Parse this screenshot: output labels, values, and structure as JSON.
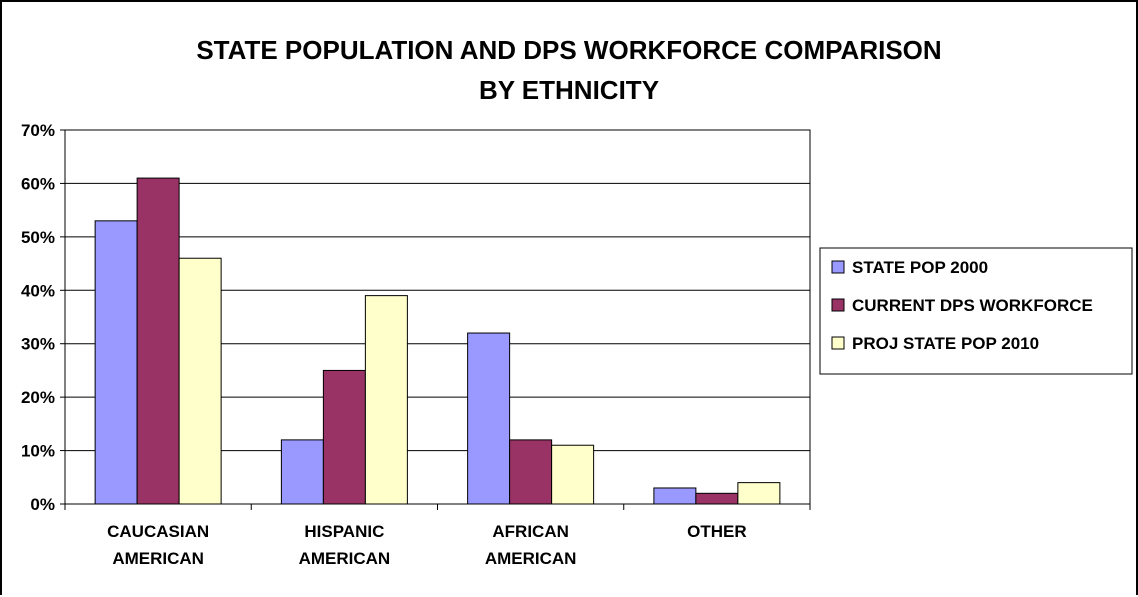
{
  "chart_data": {
    "type": "bar",
    "title_lines": [
      "STATE POPULATION AND DPS WORKFORCE COMPARISON",
      "BY ETHNICITY"
    ],
    "categories": [
      [
        "CAUCASIAN",
        "AMERICAN"
      ],
      [
        "HISPANIC",
        "AMERICAN"
      ],
      [
        "AFRICAN",
        "AMERICAN"
      ],
      [
        "OTHER"
      ]
    ],
    "series": [
      {
        "name": "STATE POP 2000",
        "color": "#9999ff",
        "values": [
          53,
          12,
          32,
          3
        ]
      },
      {
        "name": "CURRENT DPS WORKFORCE",
        "color": "#993366",
        "values": [
          61,
          25,
          12,
          2
        ]
      },
      {
        "name": "PROJ STATE POP 2010",
        "color": "#ffffcc",
        "values": [
          46,
          39,
          11,
          4
        ]
      }
    ],
    "y_ticks": [
      "0%",
      "10%",
      "20%",
      "30%",
      "40%",
      "50%",
      "60%",
      "70%"
    ],
    "ylim": [
      0,
      70
    ],
    "y_unit": "percent",
    "grid": true,
    "legend_position": "right"
  }
}
